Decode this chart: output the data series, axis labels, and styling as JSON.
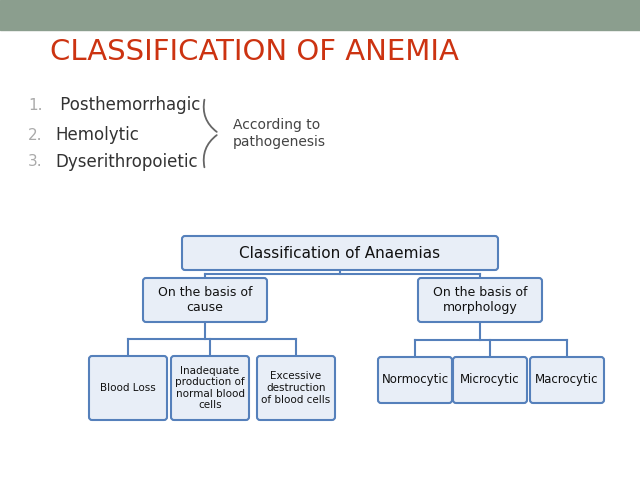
{
  "title": "CLASSIFICATION OF ANEMIA",
  "title_color": "#CC3311",
  "title_fontsize": 21,
  "header_bg": "#8B9E8E",
  "bg_color": "#FFFFFF",
  "list_items": [
    " Posthemorrhagic",
    "Hemolytic",
    "Dyserithropoietic"
  ],
  "list_numbers_color": "#AAAAAA",
  "list_text_color": "#333333",
  "brace_label": "According to\npathogenesis",
  "tree_title": "Classification of Anaemias",
  "tree_l2_left": "On the basis of\ncause",
  "tree_l2_right": "On the basis of\nmorphology",
  "tree_l3_left": [
    "Blood Loss",
    "Inadequate\nproduction of\nnormal blood\ncells",
    "Excessive\ndestruction\nof blood cells"
  ],
  "tree_l3_right": [
    "Normocytic",
    "Microcytic",
    "Macrocytic"
  ],
  "box_fill": "#E8EEF7",
  "box_edge": "#5580BB",
  "tree_text_color": "#111111",
  "line_color": "#5580BB"
}
